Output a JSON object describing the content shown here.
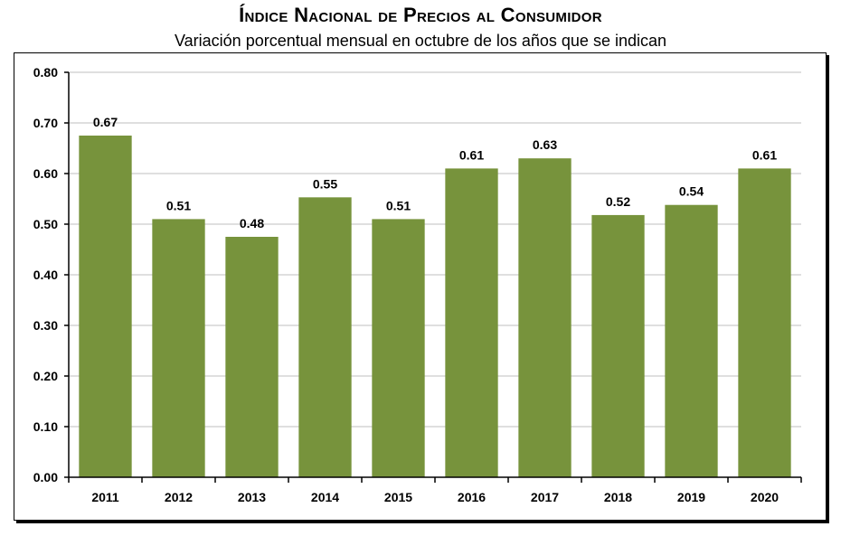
{
  "header": {
    "title": "Índice Nacional de Precios al Consumidor",
    "subtitle": "Variación porcentual mensual en octubre de los años que se indican"
  },
  "colors": {
    "bar": "#77933c",
    "grid": "#bfbfbf",
    "axis": "#000000"
  },
  "chart_data": {
    "type": "bar",
    "title": "Índice Nacional de Precios al Consumidor",
    "subtitle": "Variación porcentual mensual en octubre de los años que se indican",
    "categories": [
      "2011",
      "2012",
      "2013",
      "2014",
      "2015",
      "2016",
      "2017",
      "2018",
      "2019",
      "2020"
    ],
    "values": [
      0.675,
      0.51,
      0.475,
      0.553,
      0.51,
      0.61,
      0.63,
      0.518,
      0.538,
      0.61
    ],
    "value_labels": [
      "0.67",
      "0.51",
      "0.48",
      "0.55",
      "0.51",
      "0.61",
      "0.63",
      "0.52",
      "0.54",
      "0.61"
    ],
    "yticks": [
      "0.00",
      "0.10",
      "0.20",
      "0.30",
      "0.40",
      "0.50",
      "0.60",
      "0.70",
      "0.80"
    ],
    "ylim": [
      0,
      0.8
    ],
    "xlabel": "",
    "ylabel": "",
    "grid": true
  }
}
